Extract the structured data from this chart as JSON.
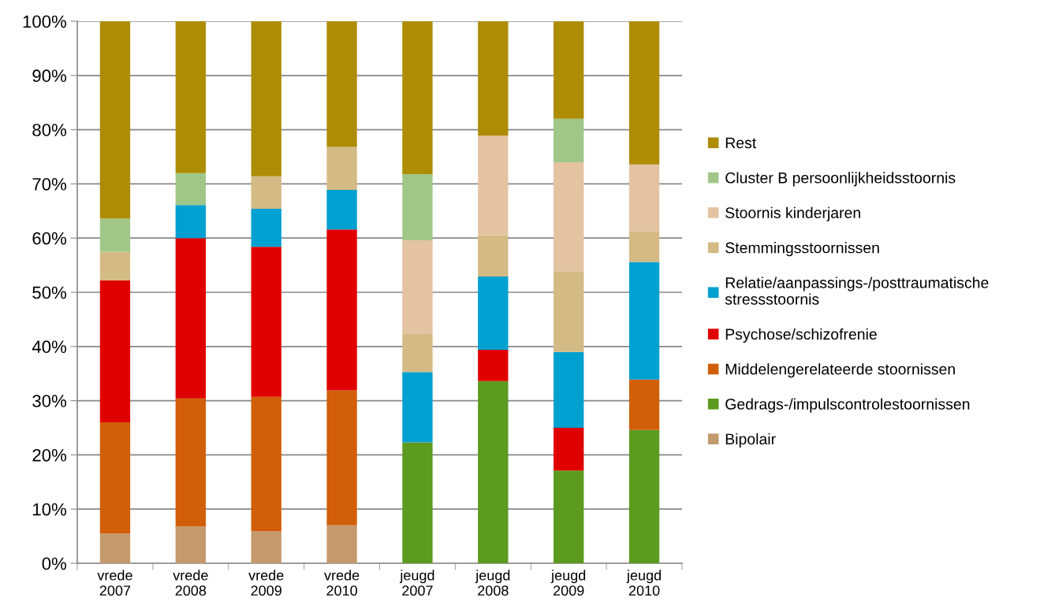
{
  "chart_data": {
    "type": "bar",
    "stacked": true,
    "grid": "y",
    "legend": "right",
    "categories": [
      "vrede\n2007",
      "vrede\n2008",
      "vrede\n2009",
      "vrede\n2010",
      "jeugd\n2007",
      "jeugd\n2008",
      "jeugd\n2009",
      "jeugd\n2010"
    ],
    "ylim": [
      0,
      100
    ],
    "yticks": [
      {
        "value": 0,
        "label": "0%"
      },
      {
        "value": 10,
        "label": "10%"
      },
      {
        "value": 20,
        "label": "20%"
      },
      {
        "value": 30,
        "label": "30%"
      },
      {
        "value": 40,
        "label": "40%"
      },
      {
        "value": 50,
        "label": "50%"
      },
      {
        "value": 60,
        "label": "60%"
      },
      {
        "value": 70,
        "label": "70%"
      },
      {
        "value": 80,
        "label": "80%"
      },
      {
        "value": 90,
        "label": "90%"
      },
      {
        "value": 100,
        "label": "100%"
      }
    ],
    "series": [
      {
        "name": "Bipolair",
        "color": "#c49a6c",
        "values": [
          5.5,
          6.8,
          5.9,
          7.0,
          0,
          0,
          0,
          0
        ]
      },
      {
        "name": "Gedrags-/impulscontrolestoornissen",
        "color": "#5c9a20",
        "values": [
          0,
          0,
          0,
          0,
          22.3,
          33.6,
          17.1,
          24.6
        ]
      },
      {
        "name": "Middelengerelateerde stoornissen",
        "color": "#d15f09",
        "values": [
          20.5,
          23.6,
          24.8,
          24.9,
          0,
          0,
          0,
          9.3
        ]
      },
      {
        "name": "Psychose/schizofrenie",
        "color": "#e00000",
        "values": [
          26.2,
          29.6,
          27.7,
          29.7,
          0,
          5.8,
          7.9,
          0
        ]
      },
      {
        "name": "Relatie/aanpassings-/posttraumatische\nstressstoornis",
        "color": "#00a0d0",
        "values": [
          0,
          6.1,
          7.0,
          7.3,
          13.0,
          13.5,
          14.0,
          21.7
        ]
      },
      {
        "name": "Stemmingsstoornissen",
        "color": "#d4ba84",
        "values": [
          5.3,
          0,
          6.0,
          7.9,
          7.1,
          7.6,
          14.9,
          5.7
        ]
      },
      {
        "name": "Stoornis kinderjaren",
        "color": "#e4c3a3",
        "values": [
          0,
          0,
          0,
          0,
          17.2,
          18.4,
          20.1,
          12.3
        ]
      },
      {
        "name": "Cluster B persoonlijkheidsstoornis",
        "color": "#a0c788",
        "values": [
          6.1,
          5.9,
          0,
          0,
          12.2,
          0,
          8.0,
          0
        ]
      },
      {
        "name": "Rest",
        "color": "#ad8c06",
        "values": [
          36.4,
          28.0,
          28.6,
          23.2,
          28.2,
          21.1,
          18.0,
          26.4
        ]
      }
    ]
  }
}
